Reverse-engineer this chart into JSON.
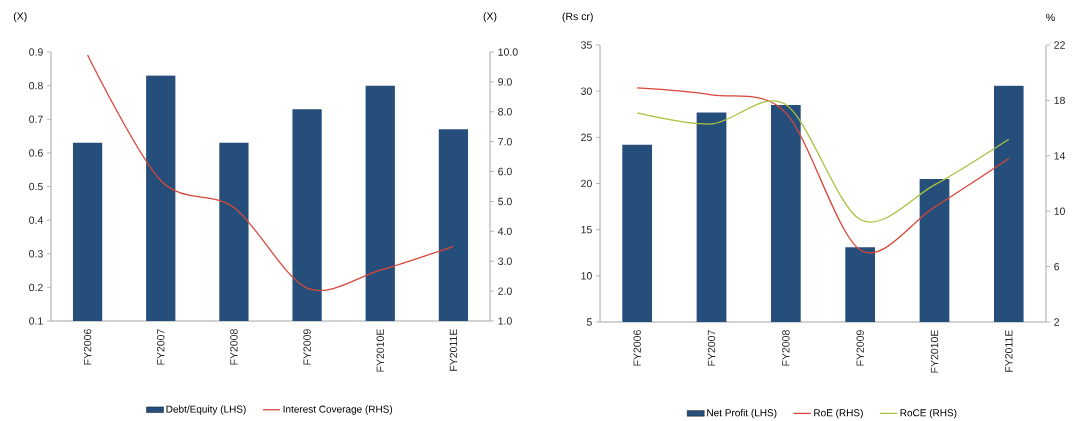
{
  "chart_data": [
    {
      "type": "bar",
      "categories": [
        "FY2006",
        "FY2007",
        "FY2008",
        "FY2009",
        "FY2010E",
        "FY2011E"
      ],
      "ylabel": "(X)",
      "y2label": "(X)",
      "ylim": [
        0.1,
        0.9
      ],
      "yticks": [
        0.1,
        0.2,
        0.3,
        0.4,
        0.5,
        0.6,
        0.7,
        0.8,
        0.9
      ],
      "y2lim": [
        1,
        10
      ],
      "y2ticks": [
        {
          "value": 1,
          "label": "1.0"
        },
        {
          "value": 2,
          "label": "2.0"
        },
        {
          "value": 3,
          "label": "3.0"
        },
        {
          "value": 4,
          "label": "4.0"
        },
        {
          "value": 5,
          "label": "5.0"
        },
        {
          "value": 6,
          "label": "6.0"
        },
        {
          "value": 7,
          "label": "7.0"
        },
        {
          "value": 8,
          "label": "8.0"
        },
        {
          "value": 9,
          "label": "9.0"
        },
        {
          "value": 10,
          "label": "10.0"
        }
      ],
      "legend": "bottom",
      "marker": "none",
      "series": [
        {
          "name": "Debt/Equity (LHS)",
          "color": "#264e7a",
          "values": [
            0.63,
            0.83,
            0.63,
            0.73,
            0.8,
            0.67
          ]
        },
        {
          "name": "Interest Coverage (RHS)",
          "type": "line",
          "axis": "y2",
          "color": "#d9463b",
          "values": [
            9.9,
            5.7,
            4.8,
            2.1,
            2.7,
            3.5
          ]
        }
      ]
    },
    {
      "type": "bar",
      "categories": [
        "FY2006",
        "FY2007",
        "FY2008",
        "FY2009",
        "FY2010E",
        "FY2011E"
      ],
      "ylabel": "(Rs cr)",
      "y2label": "%",
      "ylim": [
        5,
        35
      ],
      "yticks": [
        5,
        10,
        15,
        20,
        25,
        30,
        35
      ],
      "y2lim": [
        2,
        22
      ],
      "y2ticks": [
        2,
        6,
        10,
        14,
        18,
        22
      ],
      "legend": "bottom",
      "marker": "none",
      "series": [
        {
          "name": "Net Profit (LHS)",
          "color": "#264e7a",
          "values": [
            24.2,
            27.7,
            28.5,
            13.1,
            20.5,
            30.6
          ]
        },
        {
          "name": "RoE (RHS)",
          "type": "line",
          "axis": "y2",
          "color": "#d9463b",
          "values": [
            18.9,
            18.4,
            17.1,
            7.2,
            10.3,
            13.8
          ]
        },
        {
          "name": "RoCE (RHS)",
          "type": "line",
          "axis": "y2",
          "color": "#a9c23f",
          "values": [
            17.1,
            16.3,
            17.7,
            9.4,
            11.9,
            15.2
          ]
        }
      ]
    }
  ]
}
